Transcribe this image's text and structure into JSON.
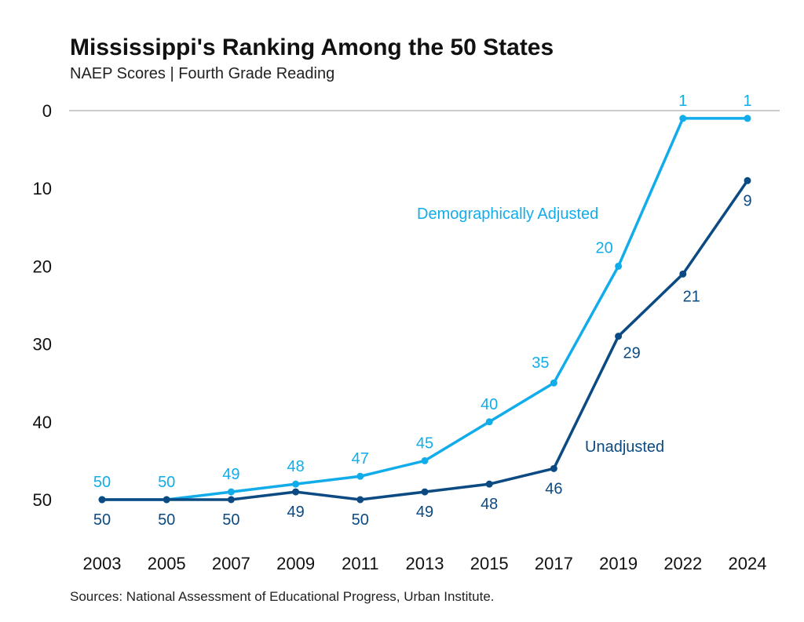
{
  "chart_data": {
    "type": "line",
    "title": "Mississippi's Ranking Among the 50 States",
    "subtitle": "NAEP Scores | Fourth Grade Reading",
    "source": "Sources: National Assessment of Educational Progress, Urban Institute.",
    "categories": [
      "2003",
      "2005",
      "2007",
      "2009",
      "2011",
      "2013",
      "2015",
      "2017",
      "2019",
      "2022",
      "2024"
    ],
    "ylim": [
      0,
      50
    ],
    "y_inverted": true,
    "yticks": [
      0,
      10,
      20,
      30,
      40,
      50
    ],
    "grid": false,
    "series": [
      {
        "name": "Demographically Adjusted",
        "color": "#12ACEA",
        "values": [
          50,
          50,
          49,
          48,
          47,
          45,
          40,
          35,
          20,
          1,
          1
        ]
      },
      {
        "name": "Unadjusted",
        "color": "#0B4A82",
        "values": [
          50,
          50,
          50,
          49,
          50,
          49,
          48,
          46,
          29,
          21,
          9
        ]
      }
    ]
  }
}
